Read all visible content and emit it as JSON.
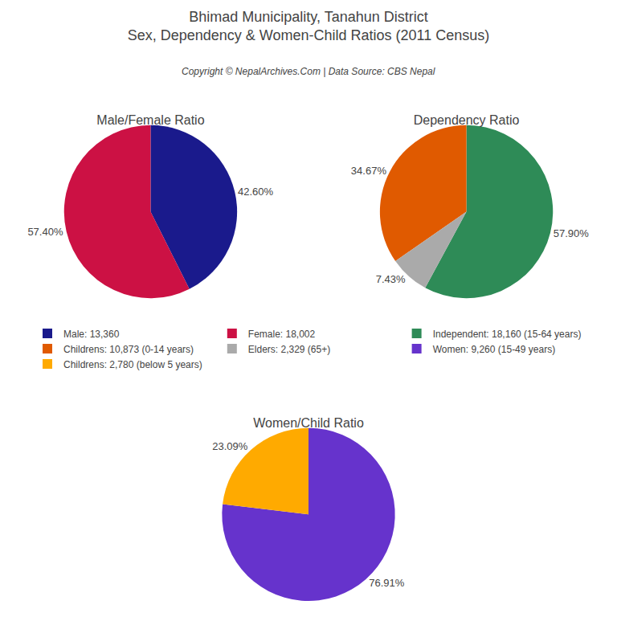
{
  "title": "Bhimad Municipality, Tanahun District",
  "subtitle": "Sex, Dependency & Women-Child Ratios (2011 Census)",
  "annotations": [
    "Copyright © NepalArchives.Com | Data Source: CBS Nepal"
  ],
  "chart_data": [
    {
      "type": "pie",
      "title": "Male/Female Ratio",
      "categories": [
        "Male: 13,360",
        "Female: 18,002"
      ],
      "values": [
        42.6,
        57.4
      ],
      "value_labels": [
        "42.60%",
        "57.40%"
      ],
      "colors": [
        "#1a1a8c",
        "#cc1144"
      ],
      "data_labels": true,
      "legend": "center"
    },
    {
      "type": "pie",
      "title": "Dependency Ratio",
      "categories": [
        "Independent: 18,160 (15-64 years)",
        "Childrens: 10,873 (0-14 years)",
        "Elders: 2,329 (65+)"
      ],
      "values": [
        57.9,
        34.67,
        7.43
      ],
      "value_labels": [
        "57.90%",
        "34.67%",
        "7.43%"
      ],
      "colors": [
        "#2e8b57",
        "#e05a00",
        "#aaaaaa"
      ],
      "data_labels": true,
      "legend": "center"
    },
    {
      "type": "pie",
      "title": "Women/Child Ratio",
      "categories": [
        "Women: 9,260 (15-49 years)",
        "Childrens: 2,780 (below 5 years)"
      ],
      "values": [
        76.91,
        23.09
      ],
      "value_labels": [
        "76.91%",
        "23.09%"
      ],
      "colors": [
        "#6633cc",
        "#ffaa00"
      ],
      "data_labels": true,
      "legend": "center"
    }
  ]
}
